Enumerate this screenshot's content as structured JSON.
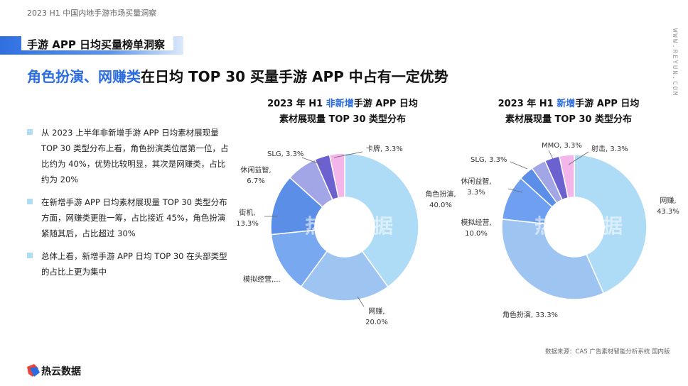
{
  "header": {
    "report_title": "2023 H1 中国内地手游市场买量洞察",
    "section_title": "手游 APP 日均买量榜单洞察",
    "headline_highlight": "角色扮演、网赚类",
    "headline_rest": "在日均 TOP 30 买量手游 APP 中占有一定优势",
    "side_url": "WWW.REYUN.COM"
  },
  "bullets": [
    "从 2023 上半年非新增手游 APP 日均素材展现量 TOP 30 类型分布上看，角色扮演类位居第一位，占比约为 40%，优势比较明显，其次是网赚类，占比约为 20%",
    "在新增手游 APP 日均素材展现量 TOP 30 类型分布方面，网赚类更胜一筹，占比接近 45%，角色扮演紧随其后，占比超过 30%",
    "总体上看，新增手游 APP 日均 TOP 30 在头部类型的占比上更为集中"
  ],
  "charts": {
    "left": {
      "title_pre": "2023 年 H1 ",
      "title_hl": "非新增",
      "title_post": "手游 APP 日均",
      "title_line2": "素材展现量 TOP 30 类型分布"
    },
    "right": {
      "title_pre": "2023 年 H1 ",
      "title_hl": "新增",
      "title_post": "手游 APP 日均",
      "title_line2": "素材展现量 TOP 30 类型分布"
    }
  },
  "chart_data": [
    {
      "type": "pie",
      "variant": "donut",
      "title": "2023 年 H1 非新增手游 APP 日均素材展现量 TOP 30 类型分布",
      "slices": [
        {
          "name": "角色扮演",
          "value": 40.0,
          "label_text": "角色扮演,",
          "value_text": "40.0%",
          "color": "#aedcf7"
        },
        {
          "name": "网赚",
          "value": 20.0,
          "label_text": "网赚,",
          "value_text": "20.0%",
          "color": "#9ec4f2"
        },
        {
          "name": "模拟经营",
          "value": 13.3,
          "label_text": "模拟经营,...",
          "value_text": "",
          "color": "#78a8f0"
        },
        {
          "name": "街机",
          "value": 13.3,
          "label_text": "街机,",
          "value_text": "13.3%",
          "color": "#5b8ee6"
        },
        {
          "name": "休闲益智",
          "value": 6.7,
          "label_text": "休闲益智,",
          "value_text": "6.7%",
          "color": "#a3a6e6"
        },
        {
          "name": "SLG",
          "value": 3.3,
          "label_text": "SLG, 3.3%",
          "value_text": "",
          "color": "#6c62cf"
        },
        {
          "name": "卡牌",
          "value": 3.3,
          "label_text": "卡牌, 3.3%",
          "value_text": "",
          "color": "#f3b5ea"
        }
      ]
    },
    {
      "type": "pie",
      "variant": "donut",
      "title": "2023 年 H1 新增手游 APP 日均素材展现量 TOP 30 类型分布",
      "slices": [
        {
          "name": "网赚",
          "value": 43.3,
          "label_text": "网赚,",
          "value_text": "43.3%",
          "color": "#aedcf7"
        },
        {
          "name": "角色扮演",
          "value": 33.3,
          "label_text": "角色扮演, 33.3%",
          "value_text": "",
          "color": "#9ec4f2"
        },
        {
          "name": "模拟经营",
          "value": 10.0,
          "label_text": "模拟经营,",
          "value_text": "10.0%",
          "color": "#6f9ff0"
        },
        {
          "name": "休闲益智",
          "value": 3.3,
          "label_text": "休闲益智,",
          "value_text": "3.3%",
          "color": "#5b8ee6"
        },
        {
          "name": "SLG",
          "value": 3.3,
          "label_text": "SLG, 3.3%",
          "value_text": "",
          "color": "#a3a6e6"
        },
        {
          "name": "MMO",
          "value": 3.3,
          "label_text": "MMO, 3.3%",
          "value_text": "",
          "color": "#6c62cf"
        },
        {
          "name": "射击",
          "value": 3.3,
          "label_text": "射击, 3.3%",
          "value_text": "",
          "color": "#f3b5ea"
        }
      ]
    }
  ],
  "watermark": "热云数据",
  "footer": {
    "source": "数据来源：CAS 广告素材智能分析系统 国内版",
    "logo_text": "热云数据"
  }
}
